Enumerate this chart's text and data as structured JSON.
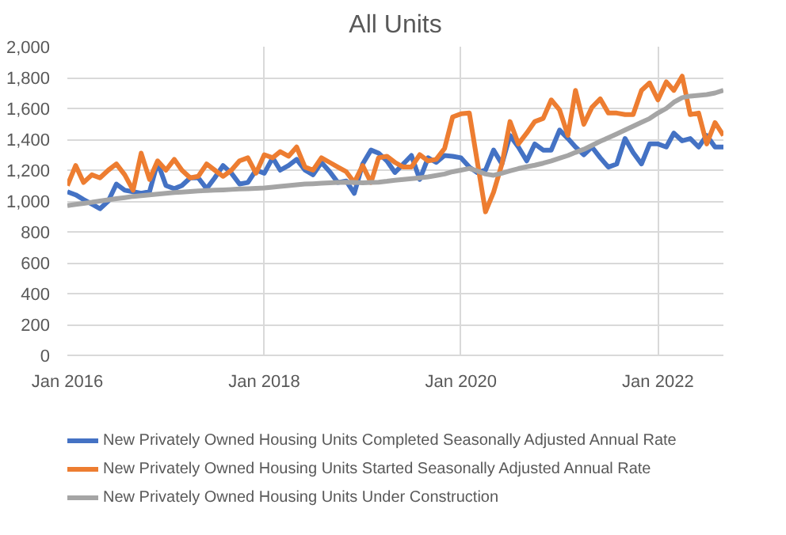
{
  "chart_data": {
    "type": "line",
    "title": "All Units",
    "x": [
      "2016-01",
      "2016-02",
      "2016-03",
      "2016-04",
      "2016-05",
      "2016-06",
      "2016-07",
      "2016-08",
      "2016-09",
      "2016-10",
      "2016-11",
      "2016-12",
      "2017-01",
      "2017-02",
      "2017-03",
      "2017-04",
      "2017-05",
      "2017-06",
      "2017-07",
      "2017-08",
      "2017-09",
      "2017-10",
      "2017-11",
      "2017-12",
      "2018-01",
      "2018-02",
      "2018-03",
      "2018-04",
      "2018-05",
      "2018-06",
      "2018-07",
      "2018-08",
      "2018-09",
      "2018-10",
      "2018-11",
      "2018-12",
      "2019-01",
      "2019-02",
      "2019-03",
      "2019-04",
      "2019-05",
      "2019-06",
      "2019-07",
      "2019-08",
      "2019-09",
      "2019-10",
      "2019-11",
      "2019-12",
      "2020-01",
      "2020-02",
      "2020-03",
      "2020-04",
      "2020-05",
      "2020-06",
      "2020-07",
      "2020-08",
      "2020-09",
      "2020-10",
      "2020-11",
      "2020-12",
      "2021-01",
      "2021-02",
      "2021-03",
      "2021-04",
      "2021-05",
      "2021-06",
      "2021-07",
      "2021-08",
      "2021-09",
      "2021-10",
      "2021-11",
      "2021-12",
      "2022-01",
      "2022-02",
      "2022-03",
      "2022-04",
      "2022-05",
      "2022-06",
      "2022-07",
      "2022-08",
      "2022-09"
    ],
    "series": [
      {
        "name": "New Privately Owned Housing Units Completed Seasonally Adjusted Annual Rate",
        "color": "#4472c4",
        "values": [
          1060,
          1040,
          1010,
          980,
          950,
          1000,
          1110,
          1070,
          1060,
          1050,
          1060,
          1250,
          1100,
          1080,
          1100,
          1150,
          1150,
          1080,
          1150,
          1230,
          1180,
          1110,
          1120,
          1200,
          1180,
          1280,
          1200,
          1230,
          1270,
          1200,
          1170,
          1250,
          1190,
          1120,
          1130,
          1050,
          1240,
          1330,
          1310,
          1260,
          1185,
          1240,
          1295,
          1140,
          1280,
          1250,
          1295,
          1290,
          1280,
          1220,
          1185,
          1200,
          1330,
          1240,
          1425,
          1350,
          1260,
          1370,
          1330,
          1330,
          1460,
          1405,
          1350,
          1300,
          1350,
          1280,
          1220,
          1240,
          1405,
          1314,
          1240,
          1370,
          1370,
          1350,
          1440,
          1390,
          1405,
          1350,
          1425,
          1350,
          1350
        ]
      },
      {
        "name": "New Privately Owned Housing Units Started Seasonally Adjusted Annual Rate",
        "color": "#ed7d31",
        "values": [
          1100,
          1230,
          1120,
          1170,
          1150,
          1200,
          1240,
          1170,
          1070,
          1310,
          1140,
          1260,
          1200,
          1270,
          1200,
          1150,
          1160,
          1240,
          1200,
          1160,
          1200,
          1260,
          1280,
          1180,
          1300,
          1280,
          1320,
          1290,
          1350,
          1220,
          1200,
          1280,
          1250,
          1220,
          1190,
          1120,
          1230,
          1120,
          1280,
          1290,
          1250,
          1220,
          1220,
          1300,
          1260,
          1270,
          1340,
          1545,
          1565,
          1570,
          1260,
          930,
          1057,
          1240,
          1515,
          1370,
          1440,
          1515,
          1535,
          1655,
          1590,
          1425,
          1717,
          1497,
          1607,
          1662,
          1570,
          1570,
          1560,
          1560,
          1717,
          1765,
          1655,
          1772,
          1717,
          1809,
          1560,
          1570,
          1370,
          1508,
          1425
        ]
      },
      {
        "name": "New Privately Owned Housing Units Under Construction",
        "color": "#a5a5a5",
        "values": [
          970,
          978,
          985,
          992,
          1000,
          1008,
          1015,
          1022,
          1030,
          1035,
          1040,
          1045,
          1050,
          1055,
          1058,
          1062,
          1065,
          1068,
          1070,
          1072,
          1075,
          1078,
          1080,
          1082,
          1085,
          1090,
          1095,
          1100,
          1105,
          1110,
          1112,
          1115,
          1118,
          1120,
          1122,
          1120,
          1118,
          1120,
          1122,
          1128,
          1135,
          1140,
          1145,
          1150,
          1156,
          1165,
          1175,
          1190,
          1200,
          1211,
          1195,
          1175,
          1167,
          1180,
          1195,
          1210,
          1222,
          1232,
          1245,
          1260,
          1277,
          1295,
          1315,
          1335,
          1360,
          1387,
          1410,
          1435,
          1460,
          1485,
          1510,
          1534,
          1570,
          1600,
          1640,
          1670,
          1680,
          1685,
          1690,
          1700,
          1717
        ]
      }
    ],
    "xlim": [
      "2016-01",
      "2022-09"
    ],
    "xticks": [
      {
        "value": "2016-01",
        "label": "Jan 2016"
      },
      {
        "value": "2018-01",
        "label": "Jan 2018"
      },
      {
        "value": "2020-01",
        "label": "Jan 2020"
      },
      {
        "value": "2022-01",
        "label": "Jan 2022"
      }
    ],
    "ylim": [
      0,
      2000
    ],
    "yticks": [
      {
        "value": 0,
        "label": "0"
      },
      {
        "value": 200,
        "label": "200"
      },
      {
        "value": 400,
        "label": "400"
      },
      {
        "value": 600,
        "label": "600"
      },
      {
        "value": 800,
        "label": "800"
      },
      {
        "value": 1000,
        "label": "1,000"
      },
      {
        "value": 1200,
        "label": "1,200"
      },
      {
        "value": 1400,
        "label": "1,400"
      },
      {
        "value": 1600,
        "label": "1,600"
      },
      {
        "value": 1800,
        "label": "1,800"
      },
      {
        "value": 2000,
        "label": "2,000"
      }
    ],
    "grid": true,
    "legend": "bottom",
    "marker": "none",
    "line_style": "solid"
  }
}
